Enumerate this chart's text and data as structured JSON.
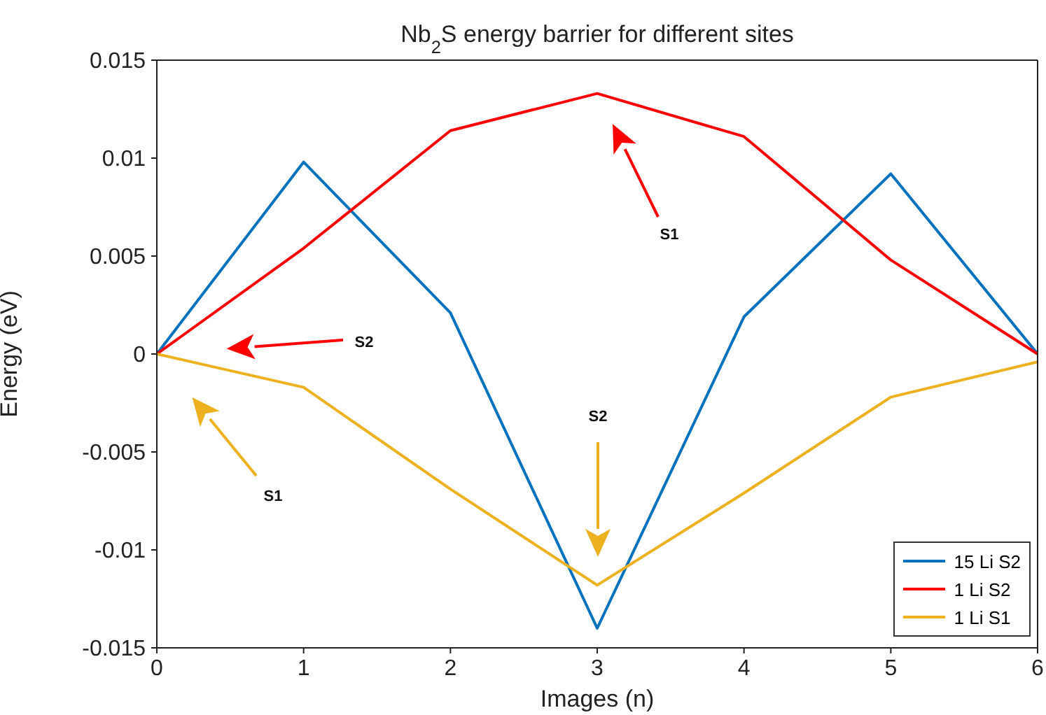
{
  "chart_data": {
    "type": "line",
    "title": "Nb$_{2}$S energy barrier for different sites",
    "xlabel": "Images (n)",
    "ylabel": "Energy (eV)",
    "x": [
      0,
      1,
      2,
      3,
      4,
      5,
      6
    ],
    "series": [
      {
        "name": "15 Li S2",
        "color": "#0072bd",
        "values": [
          0,
          0.0098,
          0.0021,
          -0.014,
          0.0019,
          0.0092,
          0
        ]
      },
      {
        "name": "1 Li S2",
        "color": "#ff0000",
        "values": [
          0,
          0.0054,
          0.0114,
          0.0133,
          0.0111,
          0.0048,
          0
        ]
      },
      {
        "name": "1 Li S1",
        "color": "#edb120",
        "values": [
          0,
          -0.0017,
          -0.0069,
          -0.0118,
          -0.0071,
          -0.0022,
          -0.0004
        ]
      }
    ],
    "xlim": [
      0,
      6
    ],
    "xticks": [
      0,
      1,
      2,
      3,
      4,
      5,
      6
    ],
    "ylim": [
      -0.015,
      0.015
    ],
    "yticks": [
      -0.015,
      -0.01,
      -0.005,
      0,
      0.005,
      0.01,
      0.015
    ],
    "grid": false,
    "legend": "bottom right",
    "marker": "none",
    "line_style": "solid",
    "annotations": [
      "S1",
      "S2",
      "S2",
      "S1"
    ]
  }
}
